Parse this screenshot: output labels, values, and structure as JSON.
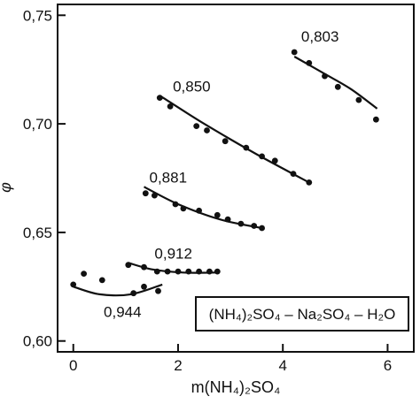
{
  "chart_data": {
    "type": "scatter",
    "title": "",
    "xlabel": "m(NH₄)₂SO₄",
    "ylabel": "φ",
    "xlim": [
      -0.3,
      6.5
    ],
    "ylim": [
      0.595,
      0.755
    ],
    "x_ticks": [
      0,
      2,
      4,
      6
    ],
    "x_tick_labels": [
      "0",
      "2",
      "4",
      "6"
    ],
    "y_ticks": [
      0.6,
      0.65,
      0.7,
      0.75
    ],
    "y_tick_labels": [
      "0,60",
      "0,65",
      "0,70",
      "0,75"
    ],
    "grid": false,
    "legend_text": "(NH₄)₂SO₄ – Na₂SO₄ – H₂O",
    "legend_placement": "bottom-right",
    "series": [
      {
        "name": "0,803",
        "points": [
          [
            4.22,
            0.733
          ],
          [
            4.5,
            0.728
          ],
          [
            4.8,
            0.722
          ],
          [
            5.05,
            0.717
          ],
          [
            5.45,
            0.711
          ],
          [
            5.78,
            0.702
          ]
        ],
        "fit": [
          [
            4.22,
            0.731
          ],
          [
            4.8,
            0.723
          ],
          [
            5.3,
            0.716
          ],
          [
            5.8,
            0.707
          ]
        ]
      },
      {
        "name": "0,850",
        "points": [
          [
            1.65,
            0.712
          ],
          [
            1.85,
            0.708
          ],
          [
            2.35,
            0.699
          ],
          [
            2.55,
            0.697
          ],
          [
            2.9,
            0.692
          ],
          [
            3.3,
            0.689
          ],
          [
            3.6,
            0.685
          ],
          [
            3.85,
            0.683
          ],
          [
            4.2,
            0.677
          ],
          [
            4.5,
            0.673
          ]
        ],
        "fit": [
          [
            1.65,
            0.713
          ],
          [
            2.5,
            0.7
          ],
          [
            3.5,
            0.686
          ],
          [
            4.5,
            0.673
          ]
        ]
      },
      {
        "name": "0,881",
        "points": [
          [
            1.38,
            0.668
          ],
          [
            1.55,
            0.667
          ],
          [
            1.95,
            0.663
          ],
          [
            2.1,
            0.661
          ],
          [
            2.4,
            0.66
          ],
          [
            2.75,
            0.658
          ],
          [
            2.95,
            0.656
          ],
          [
            3.2,
            0.654
          ],
          [
            3.45,
            0.653
          ],
          [
            3.6,
            0.652
          ]
        ],
        "fit": [
          [
            1.35,
            0.671
          ],
          [
            2.0,
            0.663
          ],
          [
            2.8,
            0.656
          ],
          [
            3.6,
            0.652
          ]
        ]
      },
      {
        "name": "0,912",
        "points": [
          [
            1.05,
            0.635
          ],
          [
            1.35,
            0.634
          ],
          [
            1.6,
            0.632
          ],
          [
            1.8,
            0.632
          ],
          [
            2.0,
            0.632
          ],
          [
            2.2,
            0.632
          ],
          [
            2.4,
            0.632
          ],
          [
            2.6,
            0.632
          ],
          [
            2.75,
            0.632
          ]
        ],
        "fit": [
          [
            1.05,
            0.636
          ],
          [
            1.5,
            0.633
          ],
          [
            2.1,
            0.6315
          ],
          [
            2.75,
            0.6315
          ]
        ]
      },
      {
        "name": "0,944",
        "points": [
          [
            0.0,
            0.626
          ],
          [
            0.2,
            0.631
          ],
          [
            0.55,
            0.628
          ],
          [
            1.15,
            0.622
          ],
          [
            1.35,
            0.625
          ],
          [
            1.62,
            0.623
          ]
        ],
        "fit": [
          [
            0.0,
            0.625
          ],
          [
            0.5,
            0.6215
          ],
          [
            1.1,
            0.6215
          ],
          [
            1.7,
            0.626
          ]
        ]
      }
    ]
  }
}
